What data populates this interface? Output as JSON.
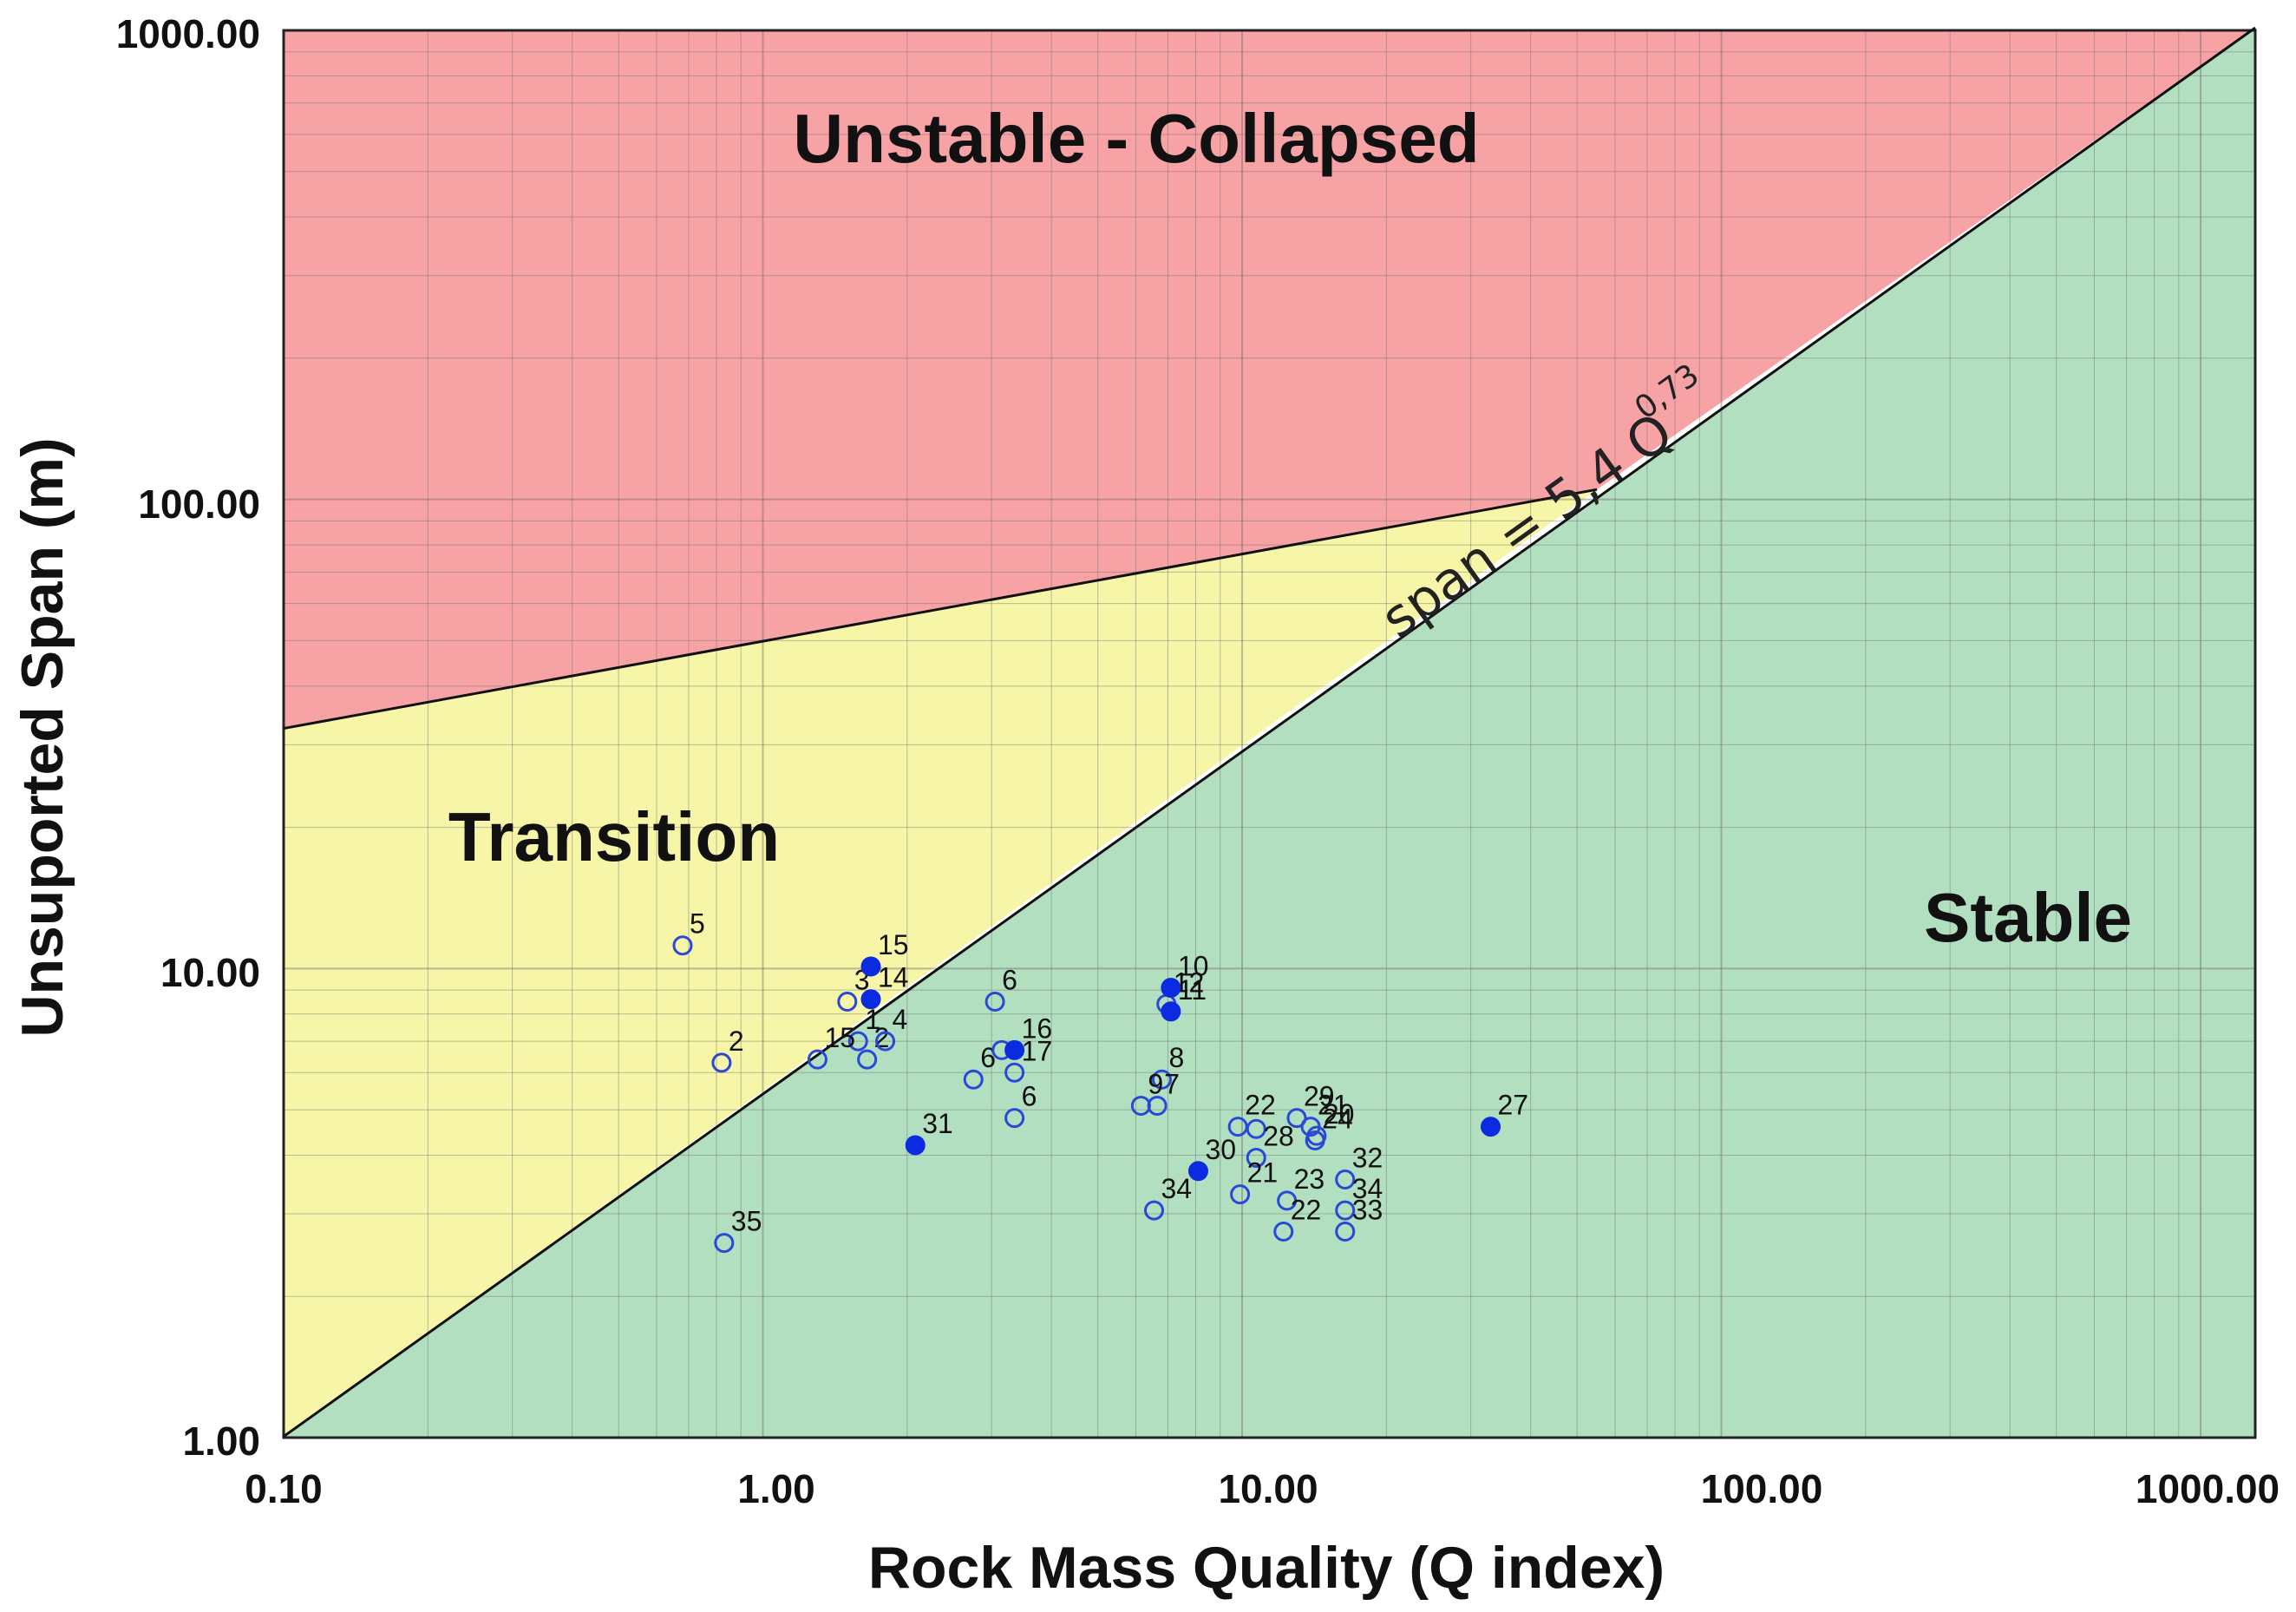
{
  "chart_data": {
    "type": "scatter",
    "title": "",
    "xlabel": "Rock Mass Quality (Q index)",
    "ylabel": "Unsuported Span (m)",
    "xscale": "log",
    "yscale": "log",
    "xlim": [
      0.1,
      1300
    ],
    "ylim": [
      1,
      1000
    ],
    "x_ticks": [
      "0.10",
      "1.00",
      "10.00",
      "100.00",
      "1000.00"
    ],
    "y_ticks": [
      "1.00",
      "10.00",
      "100.00",
      "1000.00"
    ],
    "grid": true,
    "regions": [
      {
        "name": "Unstable - Collapsed",
        "color": "#f7a3a6"
      },
      {
        "name": "Transition",
        "color": "#f7f5a7"
      },
      {
        "name": "Stable",
        "color": "#b2dfbf"
      }
    ],
    "boundaries": {
      "stable_line": {
        "equation_prefix": "span = 5,4 Q",
        "equation_exponent": "0,73",
        "coefficient": 5.4,
        "exponent": 0.73
      },
      "transition_upper": {
        "from": [
          0.1,
          32.5
        ],
        "to": [
          55,
          105
        ]
      }
    },
    "series": [
      {
        "name": "open",
        "marker": "open-circle",
        "color": "#2a48d8",
        "points": [
          {
            "label": "5",
            "x": 0.68,
            "y": 11.2
          },
          {
            "label": "2",
            "x": 0.82,
            "y": 6.3
          },
          {
            "label": "3",
            "x": 1.5,
            "y": 8.5
          },
          {
            "label": "1",
            "x": 1.58,
            "y": 7.0
          },
          {
            "label": "15",
            "x": 1.3,
            "y": 6.4
          },
          {
            "label": "2",
            "x": 1.65,
            "y": 6.4
          },
          {
            "label": "4",
            "x": 1.8,
            "y": 7.0
          },
          {
            "label": "35",
            "x": 0.83,
            "y": 2.6
          },
          {
            "label": "6",
            "x": 3.05,
            "y": 8.5
          },
          {
            "label": "6",
            "x": 2.75,
            "y": 5.8
          },
          {
            "label": "",
            "x": 3.15,
            "y": 6.7
          },
          {
            "label": "17",
            "x": 3.35,
            "y": 6.0
          },
          {
            "label": "6",
            "x": 3.35,
            "y": 4.8
          },
          {
            "label": "8",
            "x": 6.8,
            "y": 5.8
          },
          {
            "label": "9",
            "x": 6.15,
            "y": 5.1
          },
          {
            "label": "7",
            "x": 6.65,
            "y": 5.1
          },
          {
            "label": "12",
            "x": 6.95,
            "y": 8.4
          },
          {
            "label": "34",
            "x": 6.55,
            "y": 3.05
          },
          {
            "label": "22",
            "x": 9.8,
            "y": 4.6
          },
          {
            "label": "",
            "x": 10.7,
            "y": 4.55
          },
          {
            "label": "29",
            "x": 13.0,
            "y": 4.8
          },
          {
            "label": "21",
            "x": 13.9,
            "y": 4.6
          },
          {
            "label": "20",
            "x": 14.3,
            "y": 4.4
          },
          {
            "label": "24",
            "x": 14.2,
            "y": 4.3
          },
          {
            "label": "28",
            "x": 10.7,
            "y": 3.95
          },
          {
            "label": "23",
            "x": 12.4,
            "y": 3.2
          },
          {
            "label": "21",
            "x": 9.9,
            "y": 3.3
          },
          {
            "label": "22",
            "x": 12.2,
            "y": 2.75
          },
          {
            "label": "32",
            "x": 16.4,
            "y": 3.55
          },
          {
            "label": "34",
            "x": 16.4,
            "y": 3.05
          },
          {
            "label": "33",
            "x": 16.4,
            "y": 2.75
          }
        ]
      },
      {
        "name": "filled",
        "marker": "filled-circle",
        "color": "#0b2be0",
        "points": [
          {
            "label": "15",
            "x": 1.68,
            "y": 10.1
          },
          {
            "label": "14",
            "x": 1.68,
            "y": 8.6
          },
          {
            "label": "16",
            "x": 3.35,
            "y": 6.7
          },
          {
            "label": "31",
            "x": 2.08,
            "y": 4.2
          },
          {
            "label": "10",
            "x": 7.1,
            "y": 9.1
          },
          {
            "label": "11",
            "x": 7.1,
            "y": 8.1
          },
          {
            "label": "30",
            "x": 8.1,
            "y": 3.7
          },
          {
            "label": "27",
            "x": 33.0,
            "y": 4.6
          }
        ]
      }
    ]
  }
}
